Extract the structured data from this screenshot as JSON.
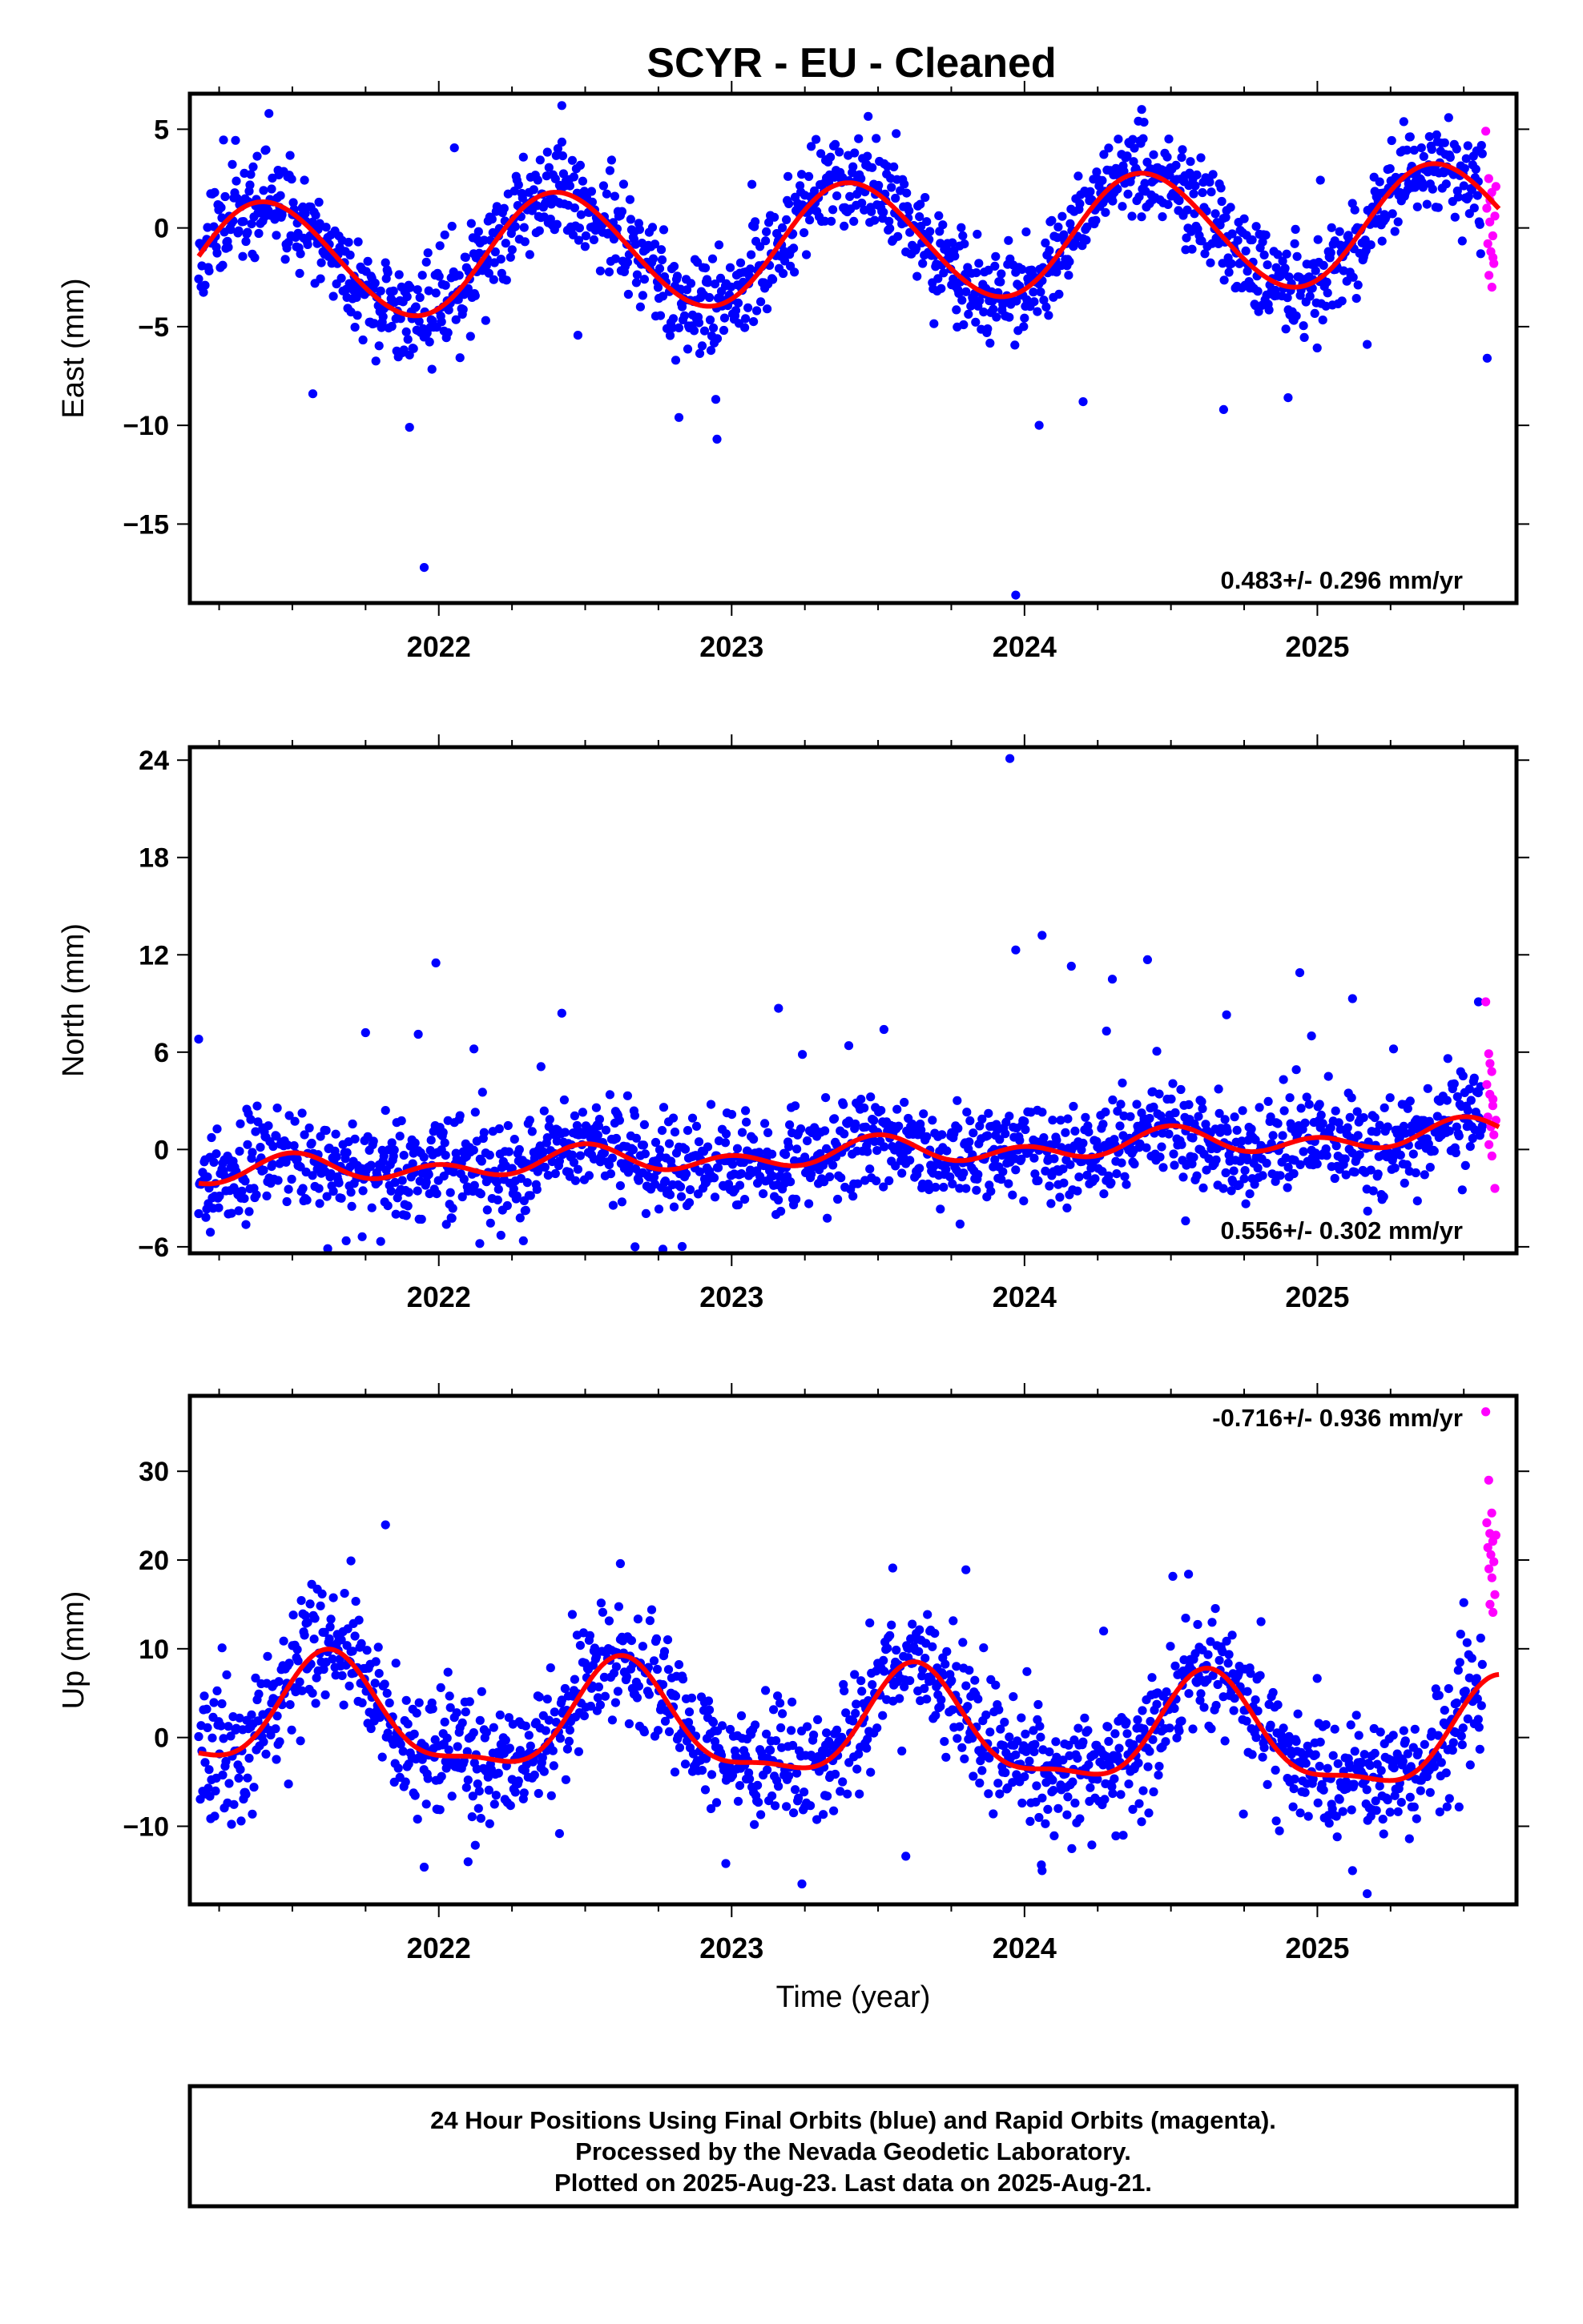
{
  "chart_data": [
    {
      "type": "scatter",
      "panel": "east",
      "title": "SCYR  - EU - Cleaned",
      "ylabel": "East (mm)",
      "xlabel": "",
      "xlim": [
        2021.15,
        2025.68
      ],
      "ylim": [
        -19.0,
        6.8
      ],
      "yticks": [
        5,
        0,
        -5,
        -10,
        -15
      ],
      "ytick_labels": [
        "5",
        "0",
        "−5",
        "−10",
        "−15"
      ],
      "xticks": [
        2022,
        2023,
        2024,
        2025
      ],
      "xtick_labels": [
        "2022",
        "2023",
        "2024",
        "2025"
      ],
      "rate_label": "0.483+/- 0.296 mm/yr",
      "rate_position": "bottom-right",
      "model": {
        "mean": -0.75,
        "rate": 0.483,
        "annual_amp": 3.0,
        "annual_peak": 2021.41,
        "semi_amp": 0.15,
        "semi_peak": 2021.3
      },
      "scatter_sd": 1.2,
      "seed": 11,
      "outliers": [
        {
          "x": 2021.95,
          "y": -17.2
        },
        {
          "x": 2023.97,
          "y": -18.6
        },
        {
          "x": 2021.9,
          "y": -10.1
        },
        {
          "x": 2022.95,
          "y": -10.7
        },
        {
          "x": 2021.42,
          "y": 5.8
        },
        {
          "x": 2022.42,
          "y": 6.2
        },
        {
          "x": 2024.4,
          "y": 6.0
        },
        {
          "x": 2024.2,
          "y": -8.8
        },
        {
          "x": 2024.05,
          "y": -10.0
        },
        {
          "x": 2021.57,
          "y": -8.4
        },
        {
          "x": 2022.82,
          "y": -9.6
        },
        {
          "x": 2024.68,
          "y": -9.2
        },
        {
          "x": 2024.9,
          "y": -8.6
        },
        {
          "x": 2025.17,
          "y": -5.9
        },
        {
          "x": 2025.58,
          "y": -6.6
        }
      ],
      "rapid_values": [
        4.9,
        2.5,
        1.8,
        1.0,
        0.3,
        -0.4,
        -0.8,
        -1.2,
        -1.8,
        -2.4,
        -3.0,
        0.6,
        1.4,
        -1.5,
        2.1
      ],
      "colors": {
        "final": "#0000ff",
        "rapid": "#ff00ff",
        "model": "#ff0000"
      }
    },
    {
      "type": "scatter",
      "panel": "north",
      "ylabel": "North (mm)",
      "xlabel": "",
      "xlim": [
        2021.15,
        2025.68
      ],
      "ylim": [
        -6.4,
        24.8
      ],
      "yticks": [
        24,
        18,
        12,
        6,
        0,
        -6
      ],
      "ytick_labels": [
        "24",
        "18",
        "12",
        "6",
        "0",
        "−6"
      ],
      "xticks": [
        2022,
        2023,
        2024,
        2025
      ],
      "xtick_labels": [
        "2022",
        "2023",
        "2024",
        "2025"
      ],
      "rate_label": "0.556+/- 0.302 mm/yr",
      "rate_position": "bottom-right",
      "model": {
        "mean": -0.25,
        "rate": 0.556,
        "annual_amp": 0.5,
        "annual_peak": 2021.5,
        "semi_amp": 0.6,
        "semi_peak": 2021.5
      },
      "scatter_sd": 1.45,
      "seed": 23,
      "outliers": [
        {
          "x": 2023.95,
          "y": 24.1
        },
        {
          "x": 2024.06,
          "y": 13.2
        },
        {
          "x": 2023.97,
          "y": 12.3
        },
        {
          "x": 2024.16,
          "y": 11.3
        },
        {
          "x": 2024.42,
          "y": 11.7
        },
        {
          "x": 2024.3,
          "y": 10.5
        },
        {
          "x": 2024.94,
          "y": 10.9
        },
        {
          "x": 2021.99,
          "y": 11.5
        },
        {
          "x": 2025.12,
          "y": 9.3
        },
        {
          "x": 2025.55,
          "y": 9.1
        },
        {
          "x": 2022.42,
          "y": 8.4
        },
        {
          "x": 2023.16,
          "y": 8.7
        },
        {
          "x": 2021.18,
          "y": 6.8
        },
        {
          "x": 2021.75,
          "y": 7.2
        },
        {
          "x": 2021.93,
          "y": 7.1
        },
        {
          "x": 2022.12,
          "y": 6.2
        },
        {
          "x": 2023.52,
          "y": 7.4
        },
        {
          "x": 2024.28,
          "y": 7.3
        },
        {
          "x": 2024.69,
          "y": 8.3
        },
        {
          "x": 2024.98,
          "y": 7.0
        },
        {
          "x": 2025.26,
          "y": 6.2
        },
        {
          "x": 2023.4,
          "y": 6.4
        },
        {
          "x": 2022.67,
          "y": -6.0
        },
        {
          "x": 2022.14,
          "y": -5.8
        },
        {
          "x": 2021.22,
          "y": -5.1
        },
        {
          "x": 2023.78,
          "y": -4.6
        },
        {
          "x": 2024.55,
          "y": -4.4
        }
      ],
      "rapid_values": [
        9.1,
        5.9,
        4.8,
        4.0,
        3.4,
        2.7,
        2.0,
        1.4,
        0.9,
        0.3,
        -0.4,
        -2.4,
        5.3,
        3.1,
        1.8
      ],
      "colors": {
        "final": "#0000ff",
        "rapid": "#ff00ff",
        "model": "#ff0000"
      }
    },
    {
      "type": "scatter",
      "panel": "up",
      "ylabel": "Up (mm)",
      "xlabel": "Time (year)",
      "xlim": [
        2021.15,
        2025.68
      ],
      "ylim": [
        -18.8,
        38.5
      ],
      "yticks": [
        30,
        20,
        10,
        0,
        -10
      ],
      "ytick_labels": [
        "30",
        "20",
        "10",
        "0",
        "−10"
      ],
      "xticks": [
        2022,
        2023,
        2024,
        2025
      ],
      "xtick_labels": [
        "2022",
        "2023",
        "2024",
        "2025"
      ],
      "rate_label": "-0.716+/- 0.936 mm/yr",
      "rate_position": "top-right",
      "model": {
        "mean": 0.9,
        "rate": -0.716,
        "annual_amp": 5.9,
        "annual_peak": 2021.63,
        "semi_amp": 1.9,
        "semi_peak": 2021.62
      },
      "scatter_sd": 3.4,
      "seed": 37,
      "outliers": [
        {
          "x": 2021.7,
          "y": 19.9
        },
        {
          "x": 2022.62,
          "y": 19.6
        },
        {
          "x": 2023.55,
          "y": 19.1
        },
        {
          "x": 2023.8,
          "y": 18.9
        },
        {
          "x": 2024.56,
          "y": 18.4
        },
        {
          "x": 2025.5,
          "y": 15.2
        },
        {
          "x": 2023.24,
          "y": -16.5
        },
        {
          "x": 2025.17,
          "y": -17.6
        },
        {
          "x": 2021.95,
          "y": -14.6
        },
        {
          "x": 2022.1,
          "y": -14.0
        },
        {
          "x": 2022.98,
          "y": -14.2
        },
        {
          "x": 2024.06,
          "y": -15.0
        },
        {
          "x": 2025.12,
          "y": -15.0
        },
        {
          "x": 2024.27,
          "y": 12.0
        },
        {
          "x": 2021.26,
          "y": 10.1
        }
      ],
      "rapid_values": [
        36.7,
        29.0,
        25.3,
        24.2,
        23.0,
        22.1,
        21.4,
        20.6,
        19.8,
        19.0,
        18.0,
        16.1,
        15.0,
        14.1,
        22.8
      ],
      "colors": {
        "final": "#0000ff",
        "rapid": "#ff00ff",
        "model": "#ff0000"
      }
    }
  ],
  "footer": {
    "line1": "24 Hour Positions Using Final Orbits (blue) and Rapid Orbits (magenta).",
    "line2": "Processed by the Nevada Geodetic Laboratory.",
    "line3": "Plotted on 2025-Aug-23. Last data on 2025-Aug-21."
  }
}
